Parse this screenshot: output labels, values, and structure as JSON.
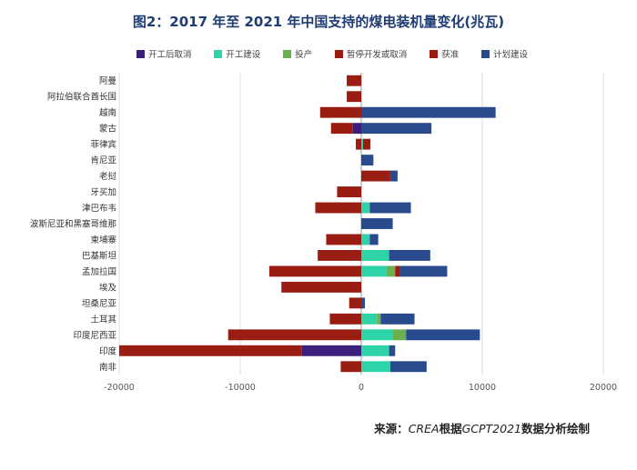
{
  "chart_data": {
    "type": "bar",
    "orientation": "horizontal",
    "stacked": true,
    "title": "图2：2017 年至 2021 年中国支持的煤电装机量变化(兆瓦)",
    "categories": [
      "阿曼",
      "阿拉伯联合酋长国",
      "越南",
      "蒙古",
      "菲律宾",
      "肯尼亚",
      "老挝",
      "牙买加",
      "津巴布韦",
      "波斯尼亚和黑塞哥维那",
      "柬埔寨",
      "巴基斯坦",
      "孟加拉国",
      "埃及",
      "坦桑尼亚",
      "土耳其",
      "印度尼西亚",
      "印度",
      "南非"
    ],
    "series": [
      {
        "name": "开工后取消",
        "color": "#3b1f7a",
        "values": [
          0,
          0,
          0,
          -700,
          0,
          0,
          0,
          0,
          0,
          0,
          0,
          0,
          0,
          0,
          0,
          0,
          0,
          -4900,
          0
        ]
      },
      {
        "name": "开工建设",
        "color": "#2ed4a7",
        "values": [
          0,
          0,
          0,
          0,
          150,
          0,
          0,
          0,
          700,
          0,
          700,
          2300,
          2100,
          0,
          0,
          1300,
          2600,
          2300,
          2400
        ]
      },
      {
        "name": "投产",
        "color": "#6ab04c",
        "values": [
          0,
          0,
          0,
          0,
          0,
          0,
          0,
          0,
          0,
          0,
          0,
          0,
          700,
          0,
          0,
          300,
          1100,
          0,
          0
        ]
      },
      {
        "name": "暂停开发或取消",
        "color": "#991d12",
        "values": [
          -1200,
          -1200,
          -3400,
          -1800,
          -450,
          0,
          0,
          -2000,
          -3800,
          0,
          -2900,
          -3600,
          -7600,
          -6600,
          -1000,
          -2600,
          -11000,
          -15100,
          -1700
        ]
      },
      {
        "name": "获准",
        "color": "#991d12",
        "values": [
          0,
          0,
          0,
          0,
          600,
          0,
          2400,
          0,
          0,
          0,
          0,
          0,
          400,
          0,
          0,
          0,
          0,
          0,
          0
        ]
      },
      {
        "name": "计划建设",
        "color": "#2a4a8e",
        "values": [
          0,
          0,
          11100,
          5800,
          0,
          1000,
          600,
          0,
          3400,
          2600,
          700,
          3400,
          3900,
          0,
          300,
          2800,
          6100,
          500,
          3000
        ]
      }
    ],
    "xlim": [
      -20000,
      20000
    ],
    "xticks": [
      -20000,
      -10000,
      0,
      10000,
      20000
    ],
    "grid": true,
    "legend_position": "top"
  },
  "source": {
    "prefix": "来源：",
    "italic": "CREA",
    "middle": "根据",
    "italic2": "GCPT2021",
    "suffix": "数据分析绘制"
  }
}
